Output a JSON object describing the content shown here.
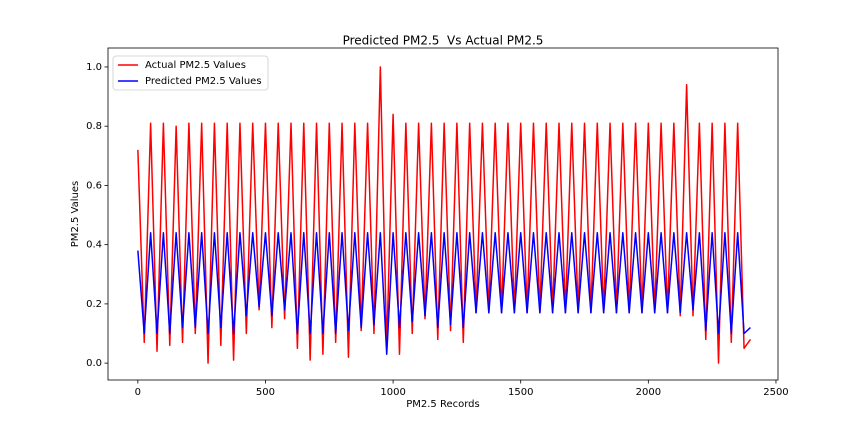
{
  "chart_data": {
    "type": "line",
    "title": "Predicted PM2.5  Vs Actual PM2.5",
    "x_label": "PM2.5 Records",
    "y_label": "PM2.5 Values",
    "x": [
      0,
      25,
      50,
      75,
      100,
      125,
      150,
      175,
      200,
      225,
      250,
      275,
      300,
      325,
      350,
      375,
      400,
      425,
      450,
      475,
      500,
      525,
      550,
      575,
      600,
      625,
      650,
      675,
      700,
      725,
      750,
      775,
      800,
      825,
      850,
      875,
      900,
      925,
      950,
      975,
      1000,
      1025,
      1050,
      1075,
      1100,
      1125,
      1150,
      1175,
      1200,
      1225,
      1250,
      1275,
      1300,
      1325,
      1350,
      1375,
      1400,
      1425,
      1450,
      1475,
      1500,
      1525,
      1550,
      1575,
      1600,
      1625,
      1650,
      1675,
      1700,
      1725,
      1750,
      1775,
      1800,
      1825,
      1850,
      1875,
      1900,
      1925,
      1950,
      1975,
      2000,
      2025,
      2050,
      2075,
      2100,
      2125,
      2150,
      2175,
      2200,
      2225,
      2250,
      2275,
      2300,
      2325,
      2350,
      2375,
      2400
    ],
    "series": [
      {
        "name": "Actual PM2.5 Values",
        "color": "#ff0000",
        "values": [
          0.72,
          0.07,
          0.81,
          0.04,
          0.81,
          0.06,
          0.8,
          0.07,
          0.81,
          0.1,
          0.81,
          0.0,
          0.81,
          0.06,
          0.81,
          0.01,
          0.81,
          0.1,
          0.81,
          0.18,
          0.81,
          0.12,
          0.81,
          0.15,
          0.81,
          0.05,
          0.81,
          0.01,
          0.81,
          0.03,
          0.81,
          0.07,
          0.81,
          0.02,
          0.81,
          0.11,
          0.81,
          0.1,
          1.0,
          0.05,
          0.84,
          0.03,
          0.81,
          0.1,
          0.81,
          0.15,
          0.81,
          0.08,
          0.81,
          0.11,
          0.81,
          0.07,
          0.81,
          0.17,
          0.81,
          0.17,
          0.81,
          0.17,
          0.81,
          0.17,
          0.81,
          0.17,
          0.81,
          0.17,
          0.81,
          0.17,
          0.81,
          0.17,
          0.81,
          0.17,
          0.81,
          0.17,
          0.81,
          0.17,
          0.81,
          0.17,
          0.81,
          0.17,
          0.81,
          0.17,
          0.81,
          0.17,
          0.81,
          0.17,
          0.81,
          0.16,
          0.94,
          0.16,
          0.81,
          0.08,
          0.81,
          0.0,
          0.81,
          0.07,
          0.81,
          0.05,
          0.08
        ]
      },
      {
        "name": "Predicted PM2.5 Values",
        "color": "#0000ff",
        "values": [
          0.38,
          0.1,
          0.44,
          0.1,
          0.44,
          0.1,
          0.44,
          0.12,
          0.44,
          0.12,
          0.44,
          0.1,
          0.44,
          0.12,
          0.44,
          0.1,
          0.44,
          0.16,
          0.44,
          0.19,
          0.44,
          0.16,
          0.44,
          0.18,
          0.44,
          0.1,
          0.44,
          0.1,
          0.44,
          0.1,
          0.44,
          0.1,
          0.44,
          0.11,
          0.44,
          0.12,
          0.44,
          0.13,
          0.44,
          0.03,
          0.44,
          0.12,
          0.44,
          0.14,
          0.44,
          0.16,
          0.44,
          0.12,
          0.44,
          0.13,
          0.44,
          0.12,
          0.44,
          0.17,
          0.44,
          0.17,
          0.44,
          0.17,
          0.44,
          0.17,
          0.44,
          0.17,
          0.44,
          0.17,
          0.44,
          0.17,
          0.44,
          0.17,
          0.44,
          0.17,
          0.44,
          0.17,
          0.44,
          0.17,
          0.44,
          0.17,
          0.44,
          0.17,
          0.44,
          0.17,
          0.44,
          0.17,
          0.44,
          0.17,
          0.44,
          0.17,
          0.44,
          0.18,
          0.44,
          0.11,
          0.44,
          0.1,
          0.44,
          0.1,
          0.44,
          0.1,
          0.12
        ]
      }
    ],
    "xlim": [
      -117,
      2508
    ],
    "xticks": [
      0,
      500,
      1000,
      1500,
      2000,
      2500
    ],
    "ylim": [
      -0.057,
      1.064
    ],
    "yticks": [
      {
        "value": 0,
        "label": "0.0"
      },
      0.2,
      0.4,
      0.6,
      0.8,
      {
        "value": 1,
        "label": "1.0"
      }
    ],
    "grid": false,
    "legend": "upper-left"
  }
}
